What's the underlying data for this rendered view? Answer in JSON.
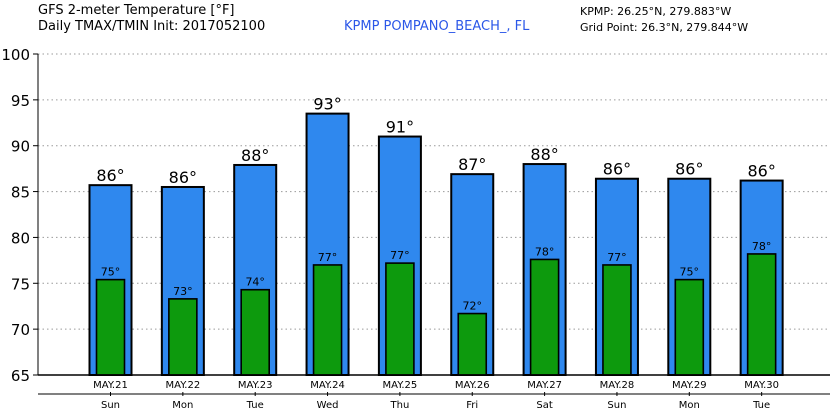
{
  "header": {
    "title_line1": "GFS 2-meter Temperature [°F]",
    "title_line2": "Daily TMAX/TMIN Init: 2017052100",
    "station": "KPMP POMPANO_BEACH_, FL",
    "station_coords": "KPMP: 26.25°N, 279.883°W",
    "grid_point": "Grid Point: 26.3°N, 279.844°W"
  },
  "colors": {
    "tmax_bar": "#2f88ee",
    "tmin_bar": "#0d9a0d",
    "station_text": "#2b57e8"
  },
  "chart_data": {
    "type": "bar",
    "title": "GFS 2-meter Temperature [°F]",
    "ylim": [
      65,
      100
    ],
    "yticks": [
      65,
      70,
      75,
      80,
      85,
      90,
      95,
      100
    ],
    "grid": true,
    "categories": [
      "MAY.21",
      "MAY.22",
      "MAY.23",
      "MAY.24",
      "MAY.25",
      "MAY.26",
      "MAY.27",
      "MAY.28",
      "MAY.29",
      "MAY.30"
    ],
    "days": [
      "Sun",
      "Mon",
      "Tue",
      "Wed",
      "Thu",
      "Fri",
      "Sat",
      "Sun",
      "Mon",
      "Tue"
    ],
    "series": [
      {
        "name": "TMAX",
        "values": [
          85.7,
          85.5,
          87.9,
          93.5,
          91.0,
          86.9,
          88.0,
          86.4,
          86.4,
          86.2
        ],
        "labels": [
          "86°",
          "86°",
          "88°",
          "93°",
          "91°",
          "87°",
          "88°",
          "86°",
          "86°",
          "86°"
        ]
      },
      {
        "name": "TMIN",
        "values": [
          75.4,
          73.3,
          74.3,
          77.0,
          77.2,
          71.7,
          77.6,
          77.0,
          75.4,
          78.2
        ],
        "labels": [
          "75°",
          "73°",
          "74°",
          "77°",
          "77°",
          "72°",
          "78°",
          "77°",
          "75°",
          "78°"
        ]
      }
    ]
  }
}
